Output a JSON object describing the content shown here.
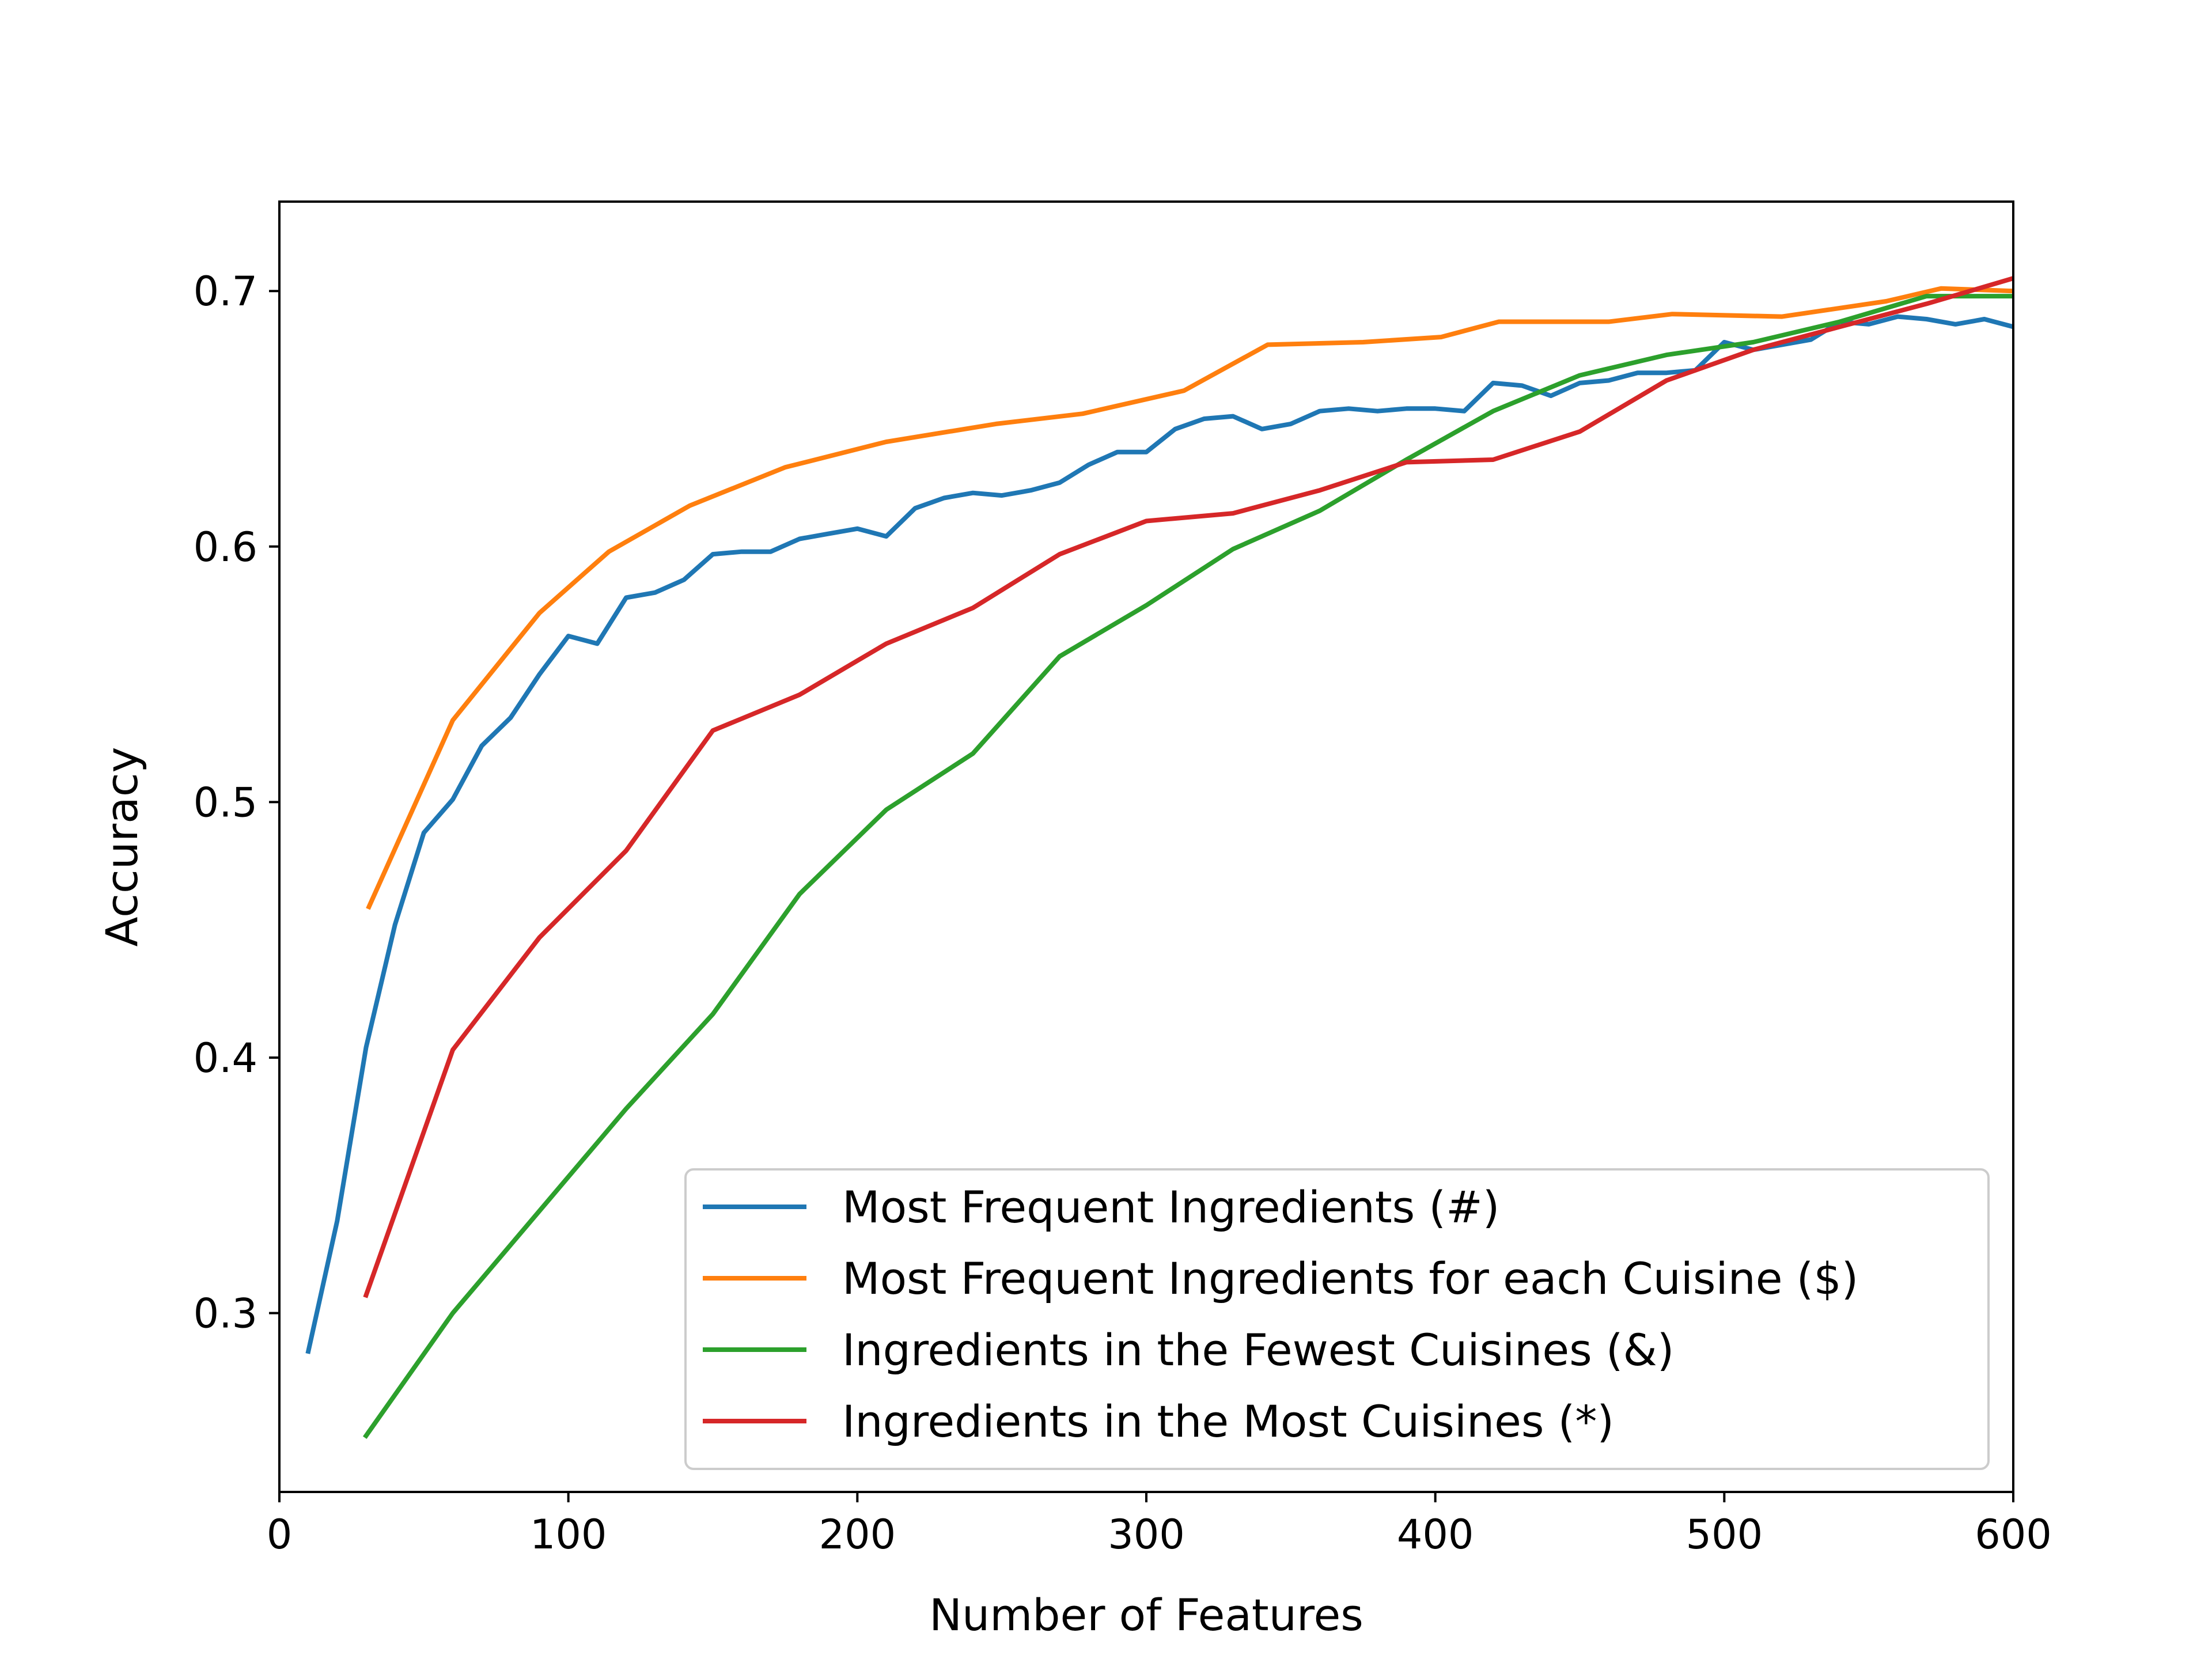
{
  "chart_data": {
    "type": "line",
    "title": "",
    "xlabel": "Number of Features",
    "ylabel": "Accuracy",
    "xlim": [
      0,
      600
    ],
    "ylim": [
      0.23,
      0.735
    ],
    "xticks": [
      0,
      100,
      200,
      300,
      400,
      500,
      600
    ],
    "yticks": [
      0.3,
      0.4,
      0.5,
      0.6,
      0.7
    ],
    "xtick_labels": [
      "0",
      "100",
      "200",
      "300",
      "400",
      "500",
      "600"
    ],
    "ytick_labels": [
      "0.3",
      "0.4",
      "0.5",
      "0.6",
      "0.7"
    ],
    "grid": false,
    "legend_position": "lower right",
    "series": [
      {
        "name": "Most Frequent Ingredients (#)",
        "color": "#1f77b4",
        "x": [
          10,
          20,
          30,
          40,
          50,
          60,
          70,
          80,
          90,
          100,
          110,
          120,
          130,
          140,
          150,
          160,
          170,
          180,
          190,
          200,
          210,
          220,
          230,
          240,
          250,
          260,
          270,
          280,
          290,
          300,
          310,
          320,
          330,
          340,
          350,
          360,
          370,
          380,
          390,
          400,
          410,
          420,
          430,
          440,
          450,
          460,
          470,
          480,
          490,
          500,
          510,
          520,
          530,
          540,
          550,
          560,
          570,
          580,
          590,
          600
        ],
        "y": [
          0.285,
          0.336,
          0.404,
          0.452,
          0.488,
          0.501,
          0.522,
          0.533,
          0.55,
          0.565,
          0.562,
          0.58,
          0.582,
          0.587,
          0.597,
          0.598,
          0.598,
          0.603,
          0.605,
          0.607,
          0.604,
          0.615,
          0.619,
          0.621,
          0.62,
          0.622,
          0.625,
          0.632,
          0.637,
          0.637,
          0.646,
          0.65,
          0.651,
          0.646,
          0.648,
          0.653,
          0.654,
          0.653,
          0.654,
          0.654,
          0.653,
          0.664,
          0.663,
          0.659,
          0.664,
          0.665,
          0.668,
          0.668,
          0.669,
          0.68,
          0.677,
          0.679,
          0.681,
          0.688,
          0.687,
          0.69,
          0.689,
          0.687,
          0.689,
          0.686
        ]
      },
      {
        "name": "Most Frequent Ingredients for each Cuisine ($)",
        "color": "#ff7f0e",
        "x": [
          31,
          60,
          90,
          114,
          142,
          175,
          210,
          248,
          278,
          313,
          342,
          375,
          402,
          422,
          460,
          482,
          520,
          556,
          575,
          600
        ],
        "y": [
          0.459,
          0.532,
          0.574,
          0.598,
          0.616,
          0.631,
          0.641,
          0.648,
          0.652,
          0.661,
          0.679,
          0.68,
          0.682,
          0.688,
          0.688,
          0.691,
          0.69,
          0.696,
          0.701,
          0.7
        ]
      },
      {
        "name": "Ingredients in the Fewest Cuisines (&)",
        "color": "#2ca02c",
        "x": [
          30,
          60,
          90,
          120,
          150,
          180,
          210,
          240,
          270,
          300,
          330,
          360,
          390,
          420,
          450,
          480,
          510,
          540,
          570,
          600
        ],
        "y": [
          0.252,
          0.3,
          0.34,
          0.38,
          0.417,
          0.464,
          0.497,
          0.519,
          0.557,
          0.577,
          0.599,
          0.614,
          0.634,
          0.653,
          0.667,
          0.675,
          0.68,
          0.688,
          0.698,
          0.698
        ]
      },
      {
        "name": "Ingredients in the Most Cuisines (*)",
        "color": "#d62728",
        "x": [
          30,
          60,
          90,
          120,
          150,
          180,
          210,
          240,
          270,
          300,
          330,
          360,
          390,
          420,
          450,
          480,
          510,
          540,
          570,
          600
        ],
        "y": [
          0.307,
          0.403,
          0.447,
          0.481,
          0.528,
          0.542,
          0.562,
          0.576,
          0.597,
          0.61,
          0.613,
          0.622,
          0.633,
          0.634,
          0.645,
          0.665,
          0.677,
          0.686,
          0.695,
          0.705
        ]
      }
    ]
  }
}
